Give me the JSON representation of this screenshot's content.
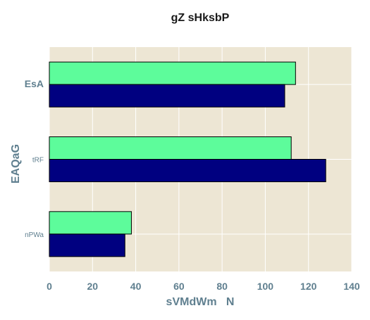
{
  "chart_data": {
    "type": "bar",
    "orientation": "horizontal",
    "title": "gZ sHksbP",
    "xlabel": "sVMdWm   N",
    "ylabel": "EAQaG",
    "categories": [
      "EsA",
      "tRF",
      "nPWa"
    ],
    "series": [
      {
        "values": [
          114,
          112,
          38
        ],
        "color": "#5dfc9b"
      },
      {
        "values": [
          109,
          128,
          35
        ],
        "color": "#000080"
      }
    ],
    "xlim": [
      0,
      140
    ],
    "xticks": [
      "0",
      "20",
      "40",
      "60",
      "80",
      "100",
      "120",
      "140"
    ],
    "grid": true,
    "plot_background": "#ede6d4",
    "grid_color": "#ffffff",
    "bar_edge_color": "#000000",
    "label_color": "#5f7f8f"
  }
}
